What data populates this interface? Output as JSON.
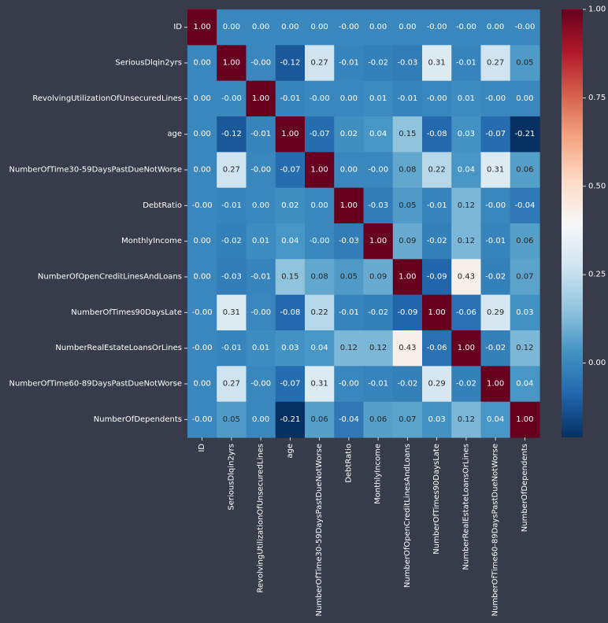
{
  "chart_data": {
    "type": "heatmap",
    "colormap": "RdBu_r (diverging blue-white-red)",
    "row_labels": [
      "ID",
      "SeriousDlqin2yrs",
      "RevolvingUtilizationOfUnsecuredLines",
      "age",
      "NumberOfTime30-59DaysPastDueNotWorse",
      "DebtRatio",
      "MonthlyIncome",
      "NumberOfOpenCreditLinesAndLoans",
      "NumberOfTimes90DaysLate",
      "NumberRealEstateLoansOrLines",
      "NumberOfTime60-89DaysPastDueNotWorse",
      "NumberOfDependents"
    ],
    "col_labels": [
      "ID",
      "SeriousDlqin2yrs",
      "RevolvingUtilizationOfUnsecuredLines",
      "age",
      "NumberOfTime30-59DaysPastDueNotWorse",
      "DebtRatio",
      "MonthlyIncome",
      "NumberOfOpenCreditLinesAndLoans",
      "NumberOfTimes90DaysLate",
      "NumberRealEstateLoansOrLines",
      "NumberOfTime60-89DaysPastDueNotWorse",
      "NumberOfDependents"
    ],
    "values": [
      [
        "1.00",
        "0.00",
        "0.00",
        "0.00",
        "0.00",
        "-0.00",
        "0.00",
        "0.00",
        "-0.00",
        "-0.00",
        "0.00",
        "-0.00"
      ],
      [
        "0.00",
        "1.00",
        "-0.00",
        "-0.12",
        "0.27",
        "-0.01",
        "-0.02",
        "-0.03",
        "0.31",
        "-0.01",
        "0.27",
        "0.05"
      ],
      [
        "0.00",
        "-0.00",
        "1.00",
        "-0.01",
        "-0.00",
        "0.00",
        "0.01",
        "-0.01",
        "-0.00",
        "0.01",
        "-0.00",
        "0.00"
      ],
      [
        "0.00",
        "-0.12",
        "-0.01",
        "1.00",
        "-0.07",
        "0.02",
        "0.04",
        "0.15",
        "-0.08",
        "0.03",
        "-0.07",
        "-0.21"
      ],
      [
        "0.00",
        "0.27",
        "-0.00",
        "-0.07",
        "1.00",
        "0.00",
        "-0.00",
        "0.08",
        "0.22",
        "0.04",
        "0.31",
        "0.06"
      ],
      [
        "-0.00",
        "-0.01",
        "0.00",
        "0.02",
        "0.00",
        "1.00",
        "-0.03",
        "0.05",
        "-0.01",
        "0.12",
        "-0.00",
        "-0.04"
      ],
      [
        "0.00",
        "-0.02",
        "0.01",
        "0.04",
        "-0.00",
        "-0.03",
        "1.00",
        "0.09",
        "-0.02",
        "0.12",
        "-0.01",
        "0.06"
      ],
      [
        "0.00",
        "-0.03",
        "-0.01",
        "0.15",
        "0.08",
        "0.05",
        "0.09",
        "1.00",
        "-0.09",
        "0.43",
        "-0.02",
        "0.07"
      ],
      [
        "-0.00",
        "0.31",
        "-0.00",
        "-0.08",
        "0.22",
        "-0.01",
        "-0.02",
        "-0.09",
        "1.00",
        "-0.06",
        "0.29",
        "0.03"
      ],
      [
        "-0.00",
        "-0.01",
        "0.01",
        "0.03",
        "0.04",
        "0.12",
        "0.12",
        "0.43",
        "-0.06",
        "1.00",
        "-0.02",
        "0.12"
      ],
      [
        "0.00",
        "0.27",
        "-0.00",
        "-0.07",
        "0.31",
        "-0.00",
        "-0.01",
        "-0.02",
        "0.29",
        "-0.02",
        "1.00",
        "0.04"
      ],
      [
        "-0.00",
        "0.05",
        "0.00",
        "-0.21",
        "0.06",
        "-0.04",
        "0.06",
        "0.07",
        "0.03",
        "0.12",
        "0.04",
        "1.00"
      ]
    ],
    "colorbar": {
      "min": -0.21,
      "max": 1.0,
      "ticks": [
        "0.00",
        "0.25",
        "0.50",
        "0.75",
        "1.00"
      ]
    },
    "grid": false
  }
}
